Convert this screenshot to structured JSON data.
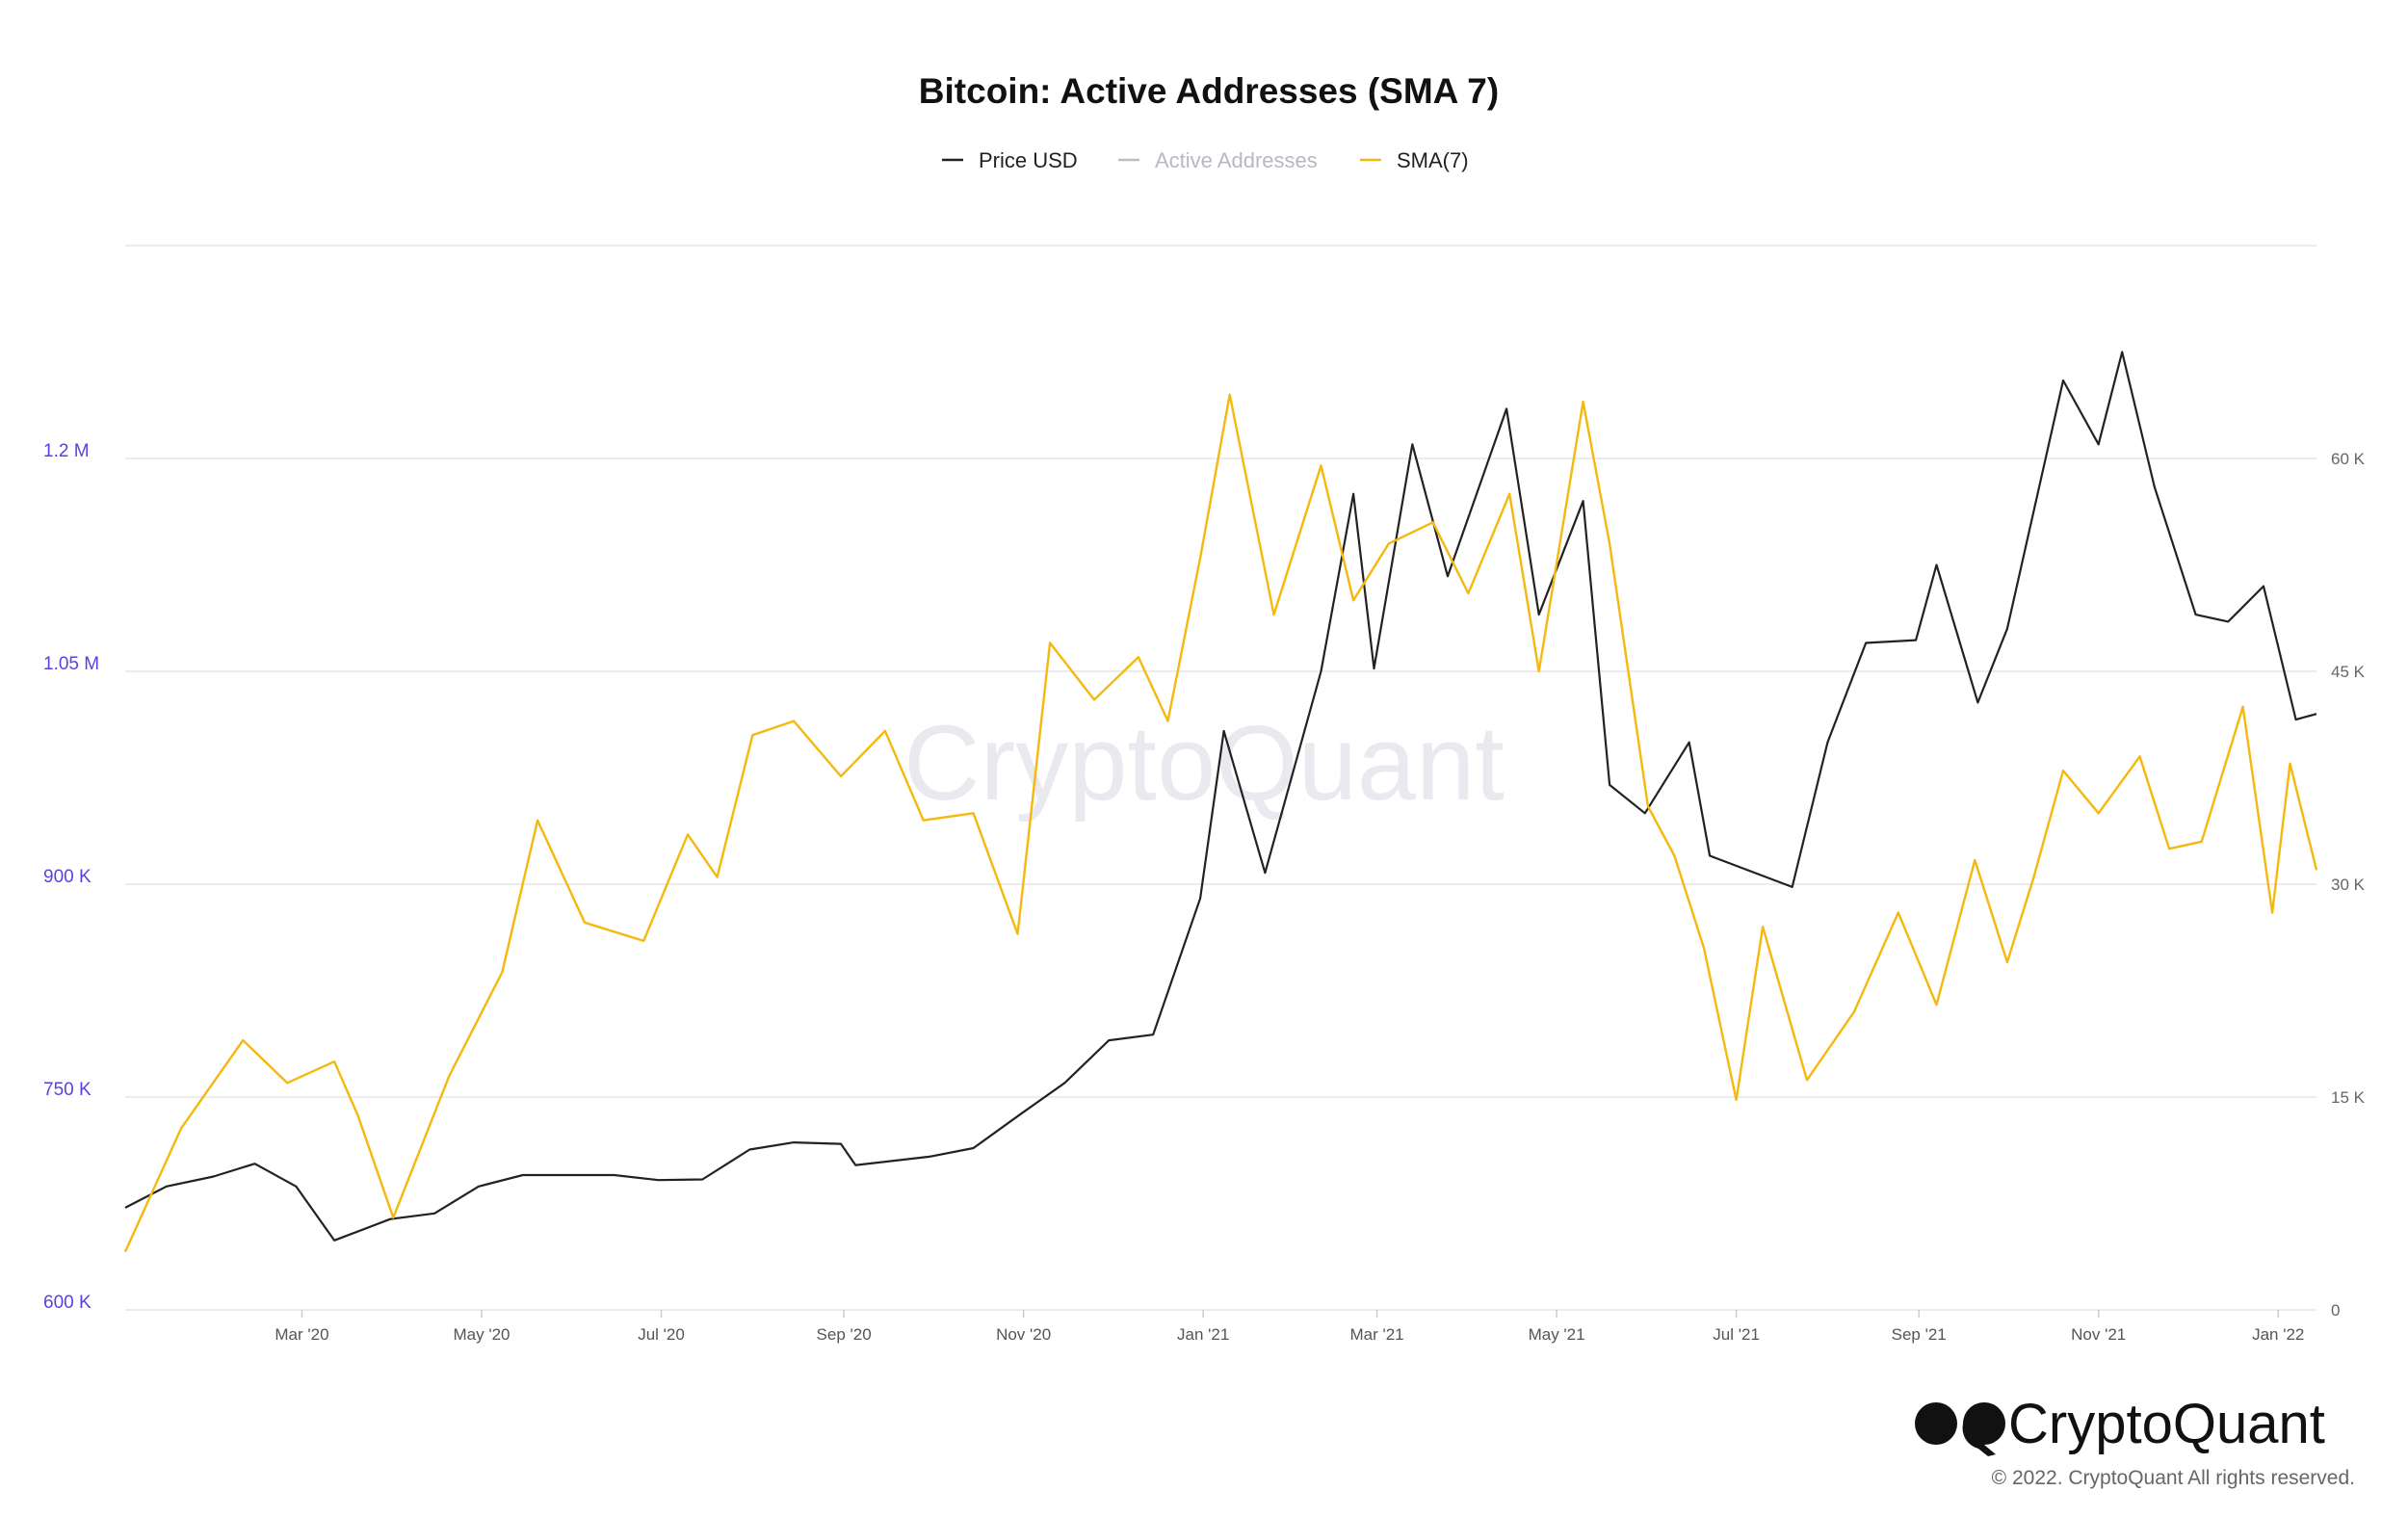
{
  "brand": {
    "name": "CryptoQuant",
    "watermark": "CryptoQuant",
    "copyright": "© 2022. CryptoQuant All rights reserved."
  },
  "colors": {
    "price": "#222222",
    "active_addresses": "#bdbdc7",
    "sma": "#f5b80c",
    "left_axis_text": "#5b3fe0",
    "grid": "#e6e6e6"
  },
  "chart_data": {
    "type": "line",
    "title": "Bitcoin: Active Addresses (SMA 7)",
    "legend": {
      "placement": "top-center",
      "items": [
        {
          "label": "Price USD",
          "color": "#222222",
          "muted": false
        },
        {
          "label": "Active Addresses",
          "color": "#bdbdc7",
          "muted": true
        },
        {
          "label": "SMA(7)",
          "color": "#f5b80c",
          "muted": false
        }
      ]
    },
    "x_range": [
      "2020-01-01",
      "2022-01-14"
    ],
    "x_ticks": [
      {
        "label": "Mar '20",
        "date": "2020-03-01"
      },
      {
        "label": "May '20",
        "date": "2020-05-01"
      },
      {
        "label": "Jul '20",
        "date": "2020-07-01"
      },
      {
        "label": "Sep '20",
        "date": "2020-09-01"
      },
      {
        "label": "Nov '20",
        "date": "2020-11-01"
      },
      {
        "label": "Jan '21",
        "date": "2021-01-01"
      },
      {
        "label": "Mar '21",
        "date": "2021-03-01"
      },
      {
        "label": "May '21",
        "date": "2021-05-01"
      },
      {
        "label": "Jul '21",
        "date": "2021-07-01"
      },
      {
        "label": "Sep '21",
        "date": "2021-09-01"
      },
      {
        "label": "Nov '21",
        "date": "2021-11-01"
      },
      {
        "label": "Jan '22",
        "date": "2022-01-01"
      }
    ],
    "y_left": {
      "min": 600000,
      "max": 1350000,
      "ticks": [
        {
          "value": 600000,
          "label": "600 K"
        },
        {
          "value": 750000,
          "label": "750 K"
        },
        {
          "value": 900000,
          "label": "900 K"
        },
        {
          "value": 1050000,
          "label": "1.05 M"
        },
        {
          "value": 1200000,
          "label": "1.2 M"
        }
      ]
    },
    "y_right": {
      "min": 0,
      "max": 75000,
      "ticks": [
        {
          "value": 0,
          "label": "0"
        },
        {
          "value": 15000,
          "label": "15 K"
        },
        {
          "value": 30000,
          "label": "30 K"
        },
        {
          "value": 45000,
          "label": "45 K"
        },
        {
          "value": 60000,
          "label": "60 K"
        }
      ]
    },
    "grid": true,
    "series": [
      {
        "name": "Price USD",
        "axis": "right",
        "points": [
          [
            "2020-01-01",
            7200
          ],
          [
            "2020-01-15",
            8700
          ],
          [
            "2020-01-31",
            9400
          ],
          [
            "2020-02-14",
            10300
          ],
          [
            "2020-02-28",
            8700
          ],
          [
            "2020-03-12",
            4900
          ],
          [
            "2020-03-31",
            6400
          ],
          [
            "2020-04-15",
            6800
          ],
          [
            "2020-04-30",
            8700
          ],
          [
            "2020-05-15",
            9500
          ],
          [
            "2020-05-31",
            9500
          ],
          [
            "2020-06-15",
            9500
          ],
          [
            "2020-06-30",
            9150
          ],
          [
            "2020-07-15",
            9200
          ],
          [
            "2020-07-31",
            11300
          ],
          [
            "2020-08-15",
            11800
          ],
          [
            "2020-08-31",
            11700
          ],
          [
            "2020-09-05",
            10200
          ],
          [
            "2020-09-30",
            10800
          ],
          [
            "2020-10-15",
            11400
          ],
          [
            "2020-10-31",
            13800
          ],
          [
            "2020-11-15",
            16000
          ],
          [
            "2020-11-30",
            19000
          ],
          [
            "2020-12-15",
            19400
          ],
          [
            "2020-12-31",
            29000
          ],
          [
            "2021-01-08",
            40800
          ],
          [
            "2021-01-22",
            30800
          ],
          [
            "2021-02-10",
            45000
          ],
          [
            "2021-02-21",
            57500
          ],
          [
            "2021-02-28",
            45200
          ],
          [
            "2021-03-13",
            61000
          ],
          [
            "2021-03-25",
            51700
          ],
          [
            "2021-04-14",
            63500
          ],
          [
            "2021-04-25",
            49000
          ],
          [
            "2021-05-10",
            57000
          ],
          [
            "2021-05-19",
            37000
          ],
          [
            "2021-05-31",
            35000
          ],
          [
            "2021-06-15",
            40000
          ],
          [
            "2021-06-22",
            32000
          ],
          [
            "2021-07-20",
            29800
          ],
          [
            "2021-08-01",
            40000
          ],
          [
            "2021-08-14",
            47000
          ],
          [
            "2021-08-31",
            47200
          ],
          [
            "2021-09-07",
            52500
          ],
          [
            "2021-09-21",
            42800
          ],
          [
            "2021-10-01",
            48000
          ],
          [
            "2021-10-20",
            65500
          ],
          [
            "2021-11-01",
            61000
          ],
          [
            "2021-11-09",
            67500
          ],
          [
            "2021-11-20",
            58000
          ],
          [
            "2021-12-04",
            49000
          ],
          [
            "2021-12-15",
            48500
          ],
          [
            "2021-12-27",
            51000
          ],
          [
            "2022-01-07",
            41600
          ],
          [
            "2022-01-14",
            42000
          ]
        ]
      },
      {
        "name": "SMA(7)",
        "axis": "left",
        "points": [
          [
            "2020-01-01",
            641000
          ],
          [
            "2020-01-20",
            728000
          ],
          [
            "2020-02-10",
            790000
          ],
          [
            "2020-02-25",
            760000
          ],
          [
            "2020-03-12",
            775000
          ],
          [
            "2020-03-20",
            737000
          ],
          [
            "2020-04-01",
            665000
          ],
          [
            "2020-04-20",
            765000
          ],
          [
            "2020-05-08",
            838000
          ],
          [
            "2020-05-20",
            945000
          ],
          [
            "2020-06-05",
            873000
          ],
          [
            "2020-06-25",
            860000
          ],
          [
            "2020-07-10",
            935000
          ],
          [
            "2020-07-20",
            905000
          ],
          [
            "2020-08-01",
            1005000
          ],
          [
            "2020-08-15",
            1015000
          ],
          [
            "2020-08-31",
            976000
          ],
          [
            "2020-09-15",
            1008000
          ],
          [
            "2020-09-28",
            945000
          ],
          [
            "2020-10-15",
            950000
          ],
          [
            "2020-10-30",
            865000
          ],
          [
            "2020-11-10",
            1070000
          ],
          [
            "2020-11-25",
            1030000
          ],
          [
            "2020-12-10",
            1060000
          ],
          [
            "2020-12-20",
            1015000
          ],
          [
            "2020-12-31",
            1130000
          ],
          [
            "2021-01-10",
            1245000
          ],
          [
            "2021-01-25",
            1090000
          ],
          [
            "2021-02-10",
            1195000
          ],
          [
            "2021-02-21",
            1100000
          ],
          [
            "2021-03-05",
            1140000
          ],
          [
            "2021-03-20",
            1155000
          ],
          [
            "2021-04-01",
            1105000
          ],
          [
            "2021-04-15",
            1175000
          ],
          [
            "2021-04-25",
            1050000
          ],
          [
            "2021-05-10",
            1240000
          ],
          [
            "2021-05-19",
            1140000
          ],
          [
            "2021-06-01",
            955000
          ],
          [
            "2021-06-10",
            920000
          ],
          [
            "2021-06-20",
            855000
          ],
          [
            "2021-07-01",
            748000
          ],
          [
            "2021-07-10",
            870000
          ],
          [
            "2021-07-25",
            762000
          ],
          [
            "2021-08-10",
            810000
          ],
          [
            "2021-08-25",
            880000
          ],
          [
            "2021-09-07",
            815000
          ],
          [
            "2021-09-20",
            917000
          ],
          [
            "2021-10-01",
            845000
          ],
          [
            "2021-10-10",
            905000
          ],
          [
            "2021-10-20",
            980000
          ],
          [
            "2021-11-01",
            950000
          ],
          [
            "2021-11-15",
            990000
          ],
          [
            "2021-11-25",
            925000
          ],
          [
            "2021-12-06",
            930000
          ],
          [
            "2021-12-20",
            1025000
          ],
          [
            "2021-12-30",
            880000
          ],
          [
            "2022-01-05",
            985000
          ],
          [
            "2022-01-14",
            910000
          ]
        ]
      }
    ]
  }
}
